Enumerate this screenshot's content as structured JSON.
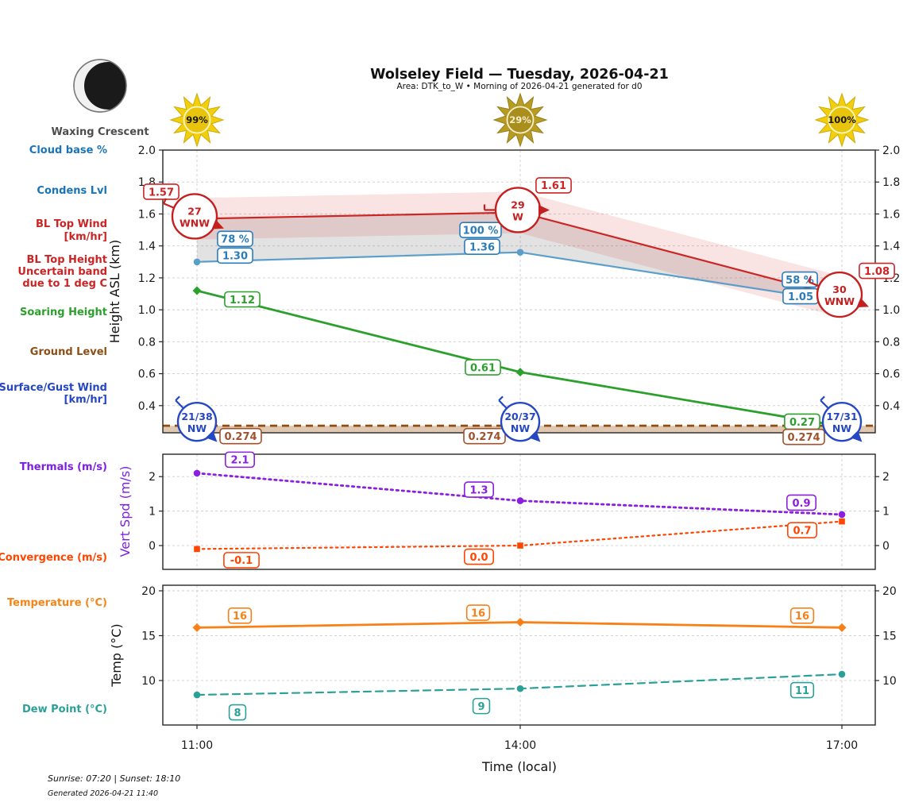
{
  "header": {
    "title": "Wolseley Field — Tuesday, 2026-04-21",
    "subtitle": "Area: DTK_to_W • Morning of 2026-04-21 generated for d0"
  },
  "moon": {
    "label": "Waxing Crescent"
  },
  "suns": [
    {
      "time": "11:00",
      "percent": "99%",
      "ray_color": "#f2cf0c",
      "edge_color": "#cfa90a",
      "center_color": "#e8c40d",
      "text_color": "#1a1a00"
    },
    {
      "time": "14:00",
      "percent": "29%",
      "ray_color": "#b79b23",
      "edge_color": "#96801c",
      "center_color": "#a98e1e",
      "text_color": "#f3ecca"
    },
    {
      "time": "17:00",
      "percent": "100%",
      "ray_color": "#f2cf0c",
      "edge_color": "#cfa90a",
      "center_color": "#e8c40d",
      "text_color": "#1a1a00"
    }
  ],
  "sidebar": {
    "cloud_base": "Cloud base %",
    "condens_lvl": "Condens Lvl",
    "bl_top_wind_1": "BL Top Wind",
    "bl_top_wind_2": "[km/hr]",
    "bl_top_height_1": "BL Top Height",
    "bl_top_height_2": "Uncertain band",
    "bl_top_height_3": "due to 1 deg C",
    "soaring_height": "Soaring Height",
    "ground_level": "Ground Level",
    "surface_wind_1": "Surface/Gust Wind",
    "surface_wind_2": "[km/hr]",
    "thermals": "Thermals (m/s)",
    "convergence": "Convergence (m/s)",
    "temperature": "Temperature (°C)",
    "dew_point": "Dew Point (°C)"
  },
  "axes": {
    "height_ylabel": "Height ASL (km)",
    "vertspd_ylabel": "Vert Spd (m/s)",
    "temp_ylabel": "Temp (°C)",
    "x_label": "Time (local)"
  },
  "footer": {
    "sun_times": "Sunrise: 07:20 | Sunset: 18:10",
    "generated": "Generated 2026-04-21 11:40"
  },
  "chart_data": [
    {
      "type": "line",
      "panel": "height",
      "ylabel": "Height ASL (km)",
      "x": [
        "11:00",
        "14:00",
        "17:00"
      ],
      "ylim": [
        0.23,
        2.0
      ],
      "yticks": [
        0.4,
        0.6,
        0.8,
        1.0,
        1.2,
        1.4,
        1.6,
        1.8,
        2.0
      ],
      "ytick_labels": [
        "0.4",
        "0.6",
        "0.8",
        "1.0",
        "1.2",
        "1.4",
        "1.6",
        "1.8",
        "2.0"
      ],
      "grid": true,
      "series": [
        {
          "name": "BL Top Height",
          "color": "#cc2525",
          "label_color": "#cc2525",
          "values": [
            1.57,
            1.61,
            1.08
          ],
          "labels": [
            "1.57",
            "1.61",
            "1.08"
          ],
          "style": {
            "dash": "solid",
            "marker": "none",
            "width": 2.2
          },
          "band_upper": [
            1.7,
            1.74,
            1.21
          ],
          "band_lower": [
            1.44,
            1.48,
            0.95
          ],
          "band_color": "rgba(214,39,40,0.13)"
        },
        {
          "name": "Condens Lvl (cloud base)",
          "color": "#5b9ec9",
          "label_color": "#2b7cb8",
          "values": [
            1.3,
            1.36,
            1.05
          ],
          "labels": [
            "1.30",
            "1.36",
            "1.05"
          ],
          "pct_labels": [
            "78 %",
            "100 %",
            "58 %"
          ],
          "style": {
            "dash": "solid",
            "marker": "circle",
            "width": 2.2
          }
        },
        {
          "name": "Soaring Height",
          "color": "#2ca02c",
          "label_color": "#2ca02c",
          "values": [
            1.12,
            0.61,
            0.27
          ],
          "labels": [
            "1.12",
            "0.61",
            "0.27"
          ],
          "style": {
            "dash": "solid",
            "marker": "diamond",
            "width": 2.8
          }
        },
        {
          "name": "Ground Level",
          "color": "#8f4e13",
          "label_color": "#a0522d",
          "values": [
            0.274,
            0.274,
            0.274
          ],
          "labels": [
            "0.274",
            "0.274",
            "0.274"
          ],
          "style": {
            "dash": "dashed",
            "marker": "none",
            "width": 2.8
          },
          "fill_below": "rgba(193,145,97,0.5)",
          "full_width": true
        }
      ],
      "bl_top_wind": [
        {
          "speed": "27",
          "dir": "WNW"
        },
        {
          "speed": "29",
          "dir": "W"
        },
        {
          "speed": "30",
          "dir": "WNW"
        }
      ],
      "surface_gust_wind": [
        {
          "speed_gust": "21/38",
          "dir": "NW"
        },
        {
          "speed_gust": "20/37",
          "dir": "NW"
        },
        {
          "speed_gust": "17/31",
          "dir": "NW"
        }
      ],
      "wind_colors": {
        "bl_top": "#c42020",
        "surface": "#2547c4"
      }
    },
    {
      "type": "line",
      "panel": "vertspd",
      "ylabel": "Vert Spd (m/s)",
      "x": [
        "11:00",
        "14:00",
        "17:00"
      ],
      "ylim": [
        -0.69,
        2.65
      ],
      "yticks": [
        0,
        1,
        2
      ],
      "ytick_labels": [
        "0",
        "1",
        "2"
      ],
      "grid": true,
      "series": [
        {
          "name": "Thermals (m/s)",
          "color": "#8a1fe0",
          "label_color": "#8a1fe0",
          "values": [
            2.1,
            1.3,
            0.9
          ],
          "labels": [
            "2.1",
            "1.3",
            "0.9"
          ],
          "style": {
            "dash": "dotted",
            "marker": "circle",
            "width": 2.8
          }
        },
        {
          "name": "Convergence (m/s)",
          "color": "#ff4500",
          "label_color": "#ff4500",
          "values": [
            -0.1,
            0.0,
            0.7
          ],
          "labels": [
            "-0.1",
            "0.0",
            "0.7"
          ],
          "style": {
            "dash": "dotted",
            "marker": "square",
            "width": 2.2
          }
        }
      ]
    },
    {
      "type": "line",
      "panel": "temp",
      "ylabel": "Temp (°C)",
      "x": [
        "11:00",
        "14:00",
        "17:00"
      ],
      "ylim": [
        5.04,
        20.62
      ],
      "yticks": [
        10,
        15,
        20
      ],
      "ytick_labels": [
        "10",
        "15",
        "20"
      ],
      "grid": true,
      "series": [
        {
          "name": "Temperature (°C)",
          "color": "#f78118",
          "label_color": "#f78118",
          "values": [
            15.9,
            16.5,
            15.9
          ],
          "labels": [
            "16",
            "16",
            "16"
          ],
          "style": {
            "dash": "solid",
            "marker": "diamond",
            "width": 2.8
          }
        },
        {
          "name": "Dew Point (°C)",
          "color": "#2aa198",
          "label_color": "#2aa198",
          "values": [
            8.4,
            9.1,
            10.7
          ],
          "labels": [
            "8",
            "9",
            "11"
          ],
          "style": {
            "dash": "dashed",
            "marker": "circle",
            "width": 2.2
          }
        }
      ]
    }
  ]
}
